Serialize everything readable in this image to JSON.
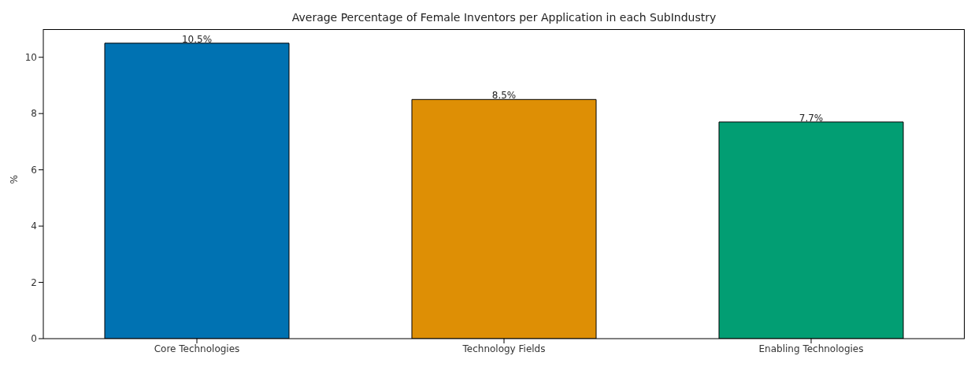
{
  "chart_data": {
    "type": "bar",
    "title": "Average Percentage of Female Inventors per Application in each SubIndustry",
    "ylabel": "%",
    "categories": [
      "Core Technologies",
      "Technology Fields",
      "Enabling Technologies"
    ],
    "values": [
      10.5,
      8.5,
      7.7
    ],
    "colors": [
      "#0072b2",
      "#de8f05",
      "#029e73"
    ],
    "value_labels": [
      "10.5%",
      "8.5%",
      "7.7%"
    ],
    "ylim": [
      0,
      11
    ],
    "yticks": [
      0,
      2,
      4,
      6,
      8,
      10
    ],
    "grid": false
  }
}
